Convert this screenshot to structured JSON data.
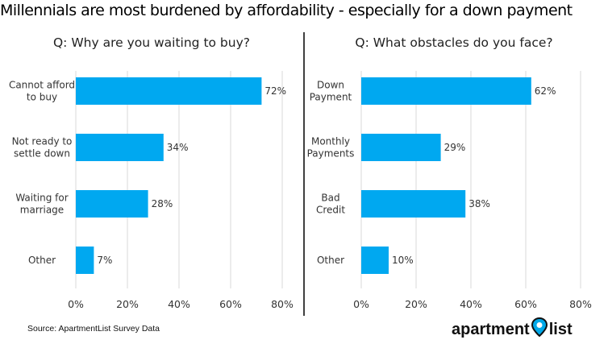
{
  "title": "Millennials are most burdened by affordability - especially for a down payment",
  "source": "Source: ApartmentList Survey Data",
  "logo": {
    "part1": "apartment",
    "part2": "list",
    "icon": "map-pin-icon",
    "icon_color": "#00a8e8"
  },
  "colors": {
    "bar": "#00a8f0",
    "grid": "#d9d9d9",
    "text": "#333333",
    "divider": "#000000"
  },
  "chart_data": [
    {
      "type": "bar",
      "orientation": "horizontal",
      "title": "Q: Why are you waiting to buy?",
      "categories": [
        [
          "Cannot afford",
          "to buy"
        ],
        [
          "Not ready to",
          "settle down"
        ],
        [
          "Waiting for",
          "marriage"
        ],
        [
          "Other"
        ]
      ],
      "values": [
        72,
        34,
        28,
        7
      ],
      "value_labels": [
        "72%",
        "34%",
        "28%",
        "7%"
      ],
      "xlim": [
        0,
        80
      ],
      "ticks": [
        0,
        20,
        40,
        60,
        80
      ],
      "tick_labels": [
        "0%",
        "20%",
        "40%",
        "60%",
        "80%"
      ],
      "grid": true
    },
    {
      "type": "bar",
      "orientation": "horizontal",
      "title": "Q: What obstacles do you face?",
      "categories": [
        [
          "Down",
          "Payment"
        ],
        [
          "Monthly",
          "Payments"
        ],
        [
          "Bad",
          "Credit"
        ],
        [
          "Other"
        ]
      ],
      "values": [
        62,
        29,
        38,
        10
      ],
      "value_labels": [
        "62%",
        "29%",
        "38%",
        "10%"
      ],
      "xlim": [
        0,
        80
      ],
      "ticks": [
        0,
        20,
        40,
        60,
        80
      ],
      "tick_labels": [
        "0%",
        "20%",
        "40%",
        "60%",
        "80%"
      ],
      "grid": true
    }
  ]
}
